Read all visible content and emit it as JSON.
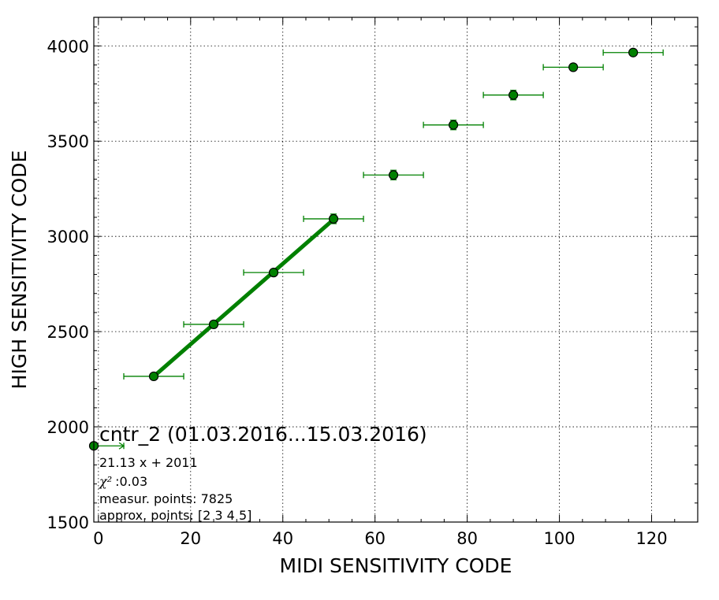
{
  "chart_data": {
    "type": "scatter",
    "title": "",
    "xlabel": "MIDI SENSITIVITY CODE",
    "ylabel": "HIGH SENSITIVITY CODE",
    "xlim": [
      -1,
      130
    ],
    "ylim": [
      1500,
      4150
    ],
    "x_ticks": [
      0,
      20,
      40,
      60,
      80,
      100,
      120
    ],
    "x_tick_labels": [
      "0",
      "20",
      "40",
      "60",
      "80",
      "100",
      "120"
    ],
    "y_ticks": [
      1500,
      2000,
      2500,
      3000,
      3500,
      4000
    ],
    "y_tick_labels": [
      "1500",
      "2000",
      "2500",
      "3000",
      "3500",
      "4000"
    ],
    "grid": true,
    "series": [
      {
        "color": "#008000",
        "points": [
          {
            "x": 12,
            "y": 2265,
            "xerr": 6.5,
            "yerr": 12
          },
          {
            "x": 25,
            "y": 2538,
            "xerr": 6.5,
            "yerr": 15
          },
          {
            "x": 38,
            "y": 2810,
            "xerr": 6.5,
            "yerr": 15
          },
          {
            "x": 51,
            "y": 3092,
            "xerr": 6.5,
            "yerr": 25
          },
          {
            "x": 64,
            "y": 3322,
            "xerr": 6.5,
            "yerr": 25
          },
          {
            "x": 77,
            "y": 3585,
            "xerr": 6.5,
            "yerr": 25
          },
          {
            "x": 90,
            "y": 3742,
            "xerr": 6.5,
            "yerr": 25
          },
          {
            "x": 103,
            "y": 3888,
            "xerr": 6.5,
            "yerr": 12
          },
          {
            "x": 116,
            "y": 3965,
            "xerr": 6.5,
            "yerr": 15
          }
        ]
      }
    ],
    "fit_line": {
      "color": "#008000",
      "slope": 21.13,
      "intercept": 2011,
      "x_range": [
        12,
        51
      ]
    },
    "legend_marker": {
      "x": -1,
      "y": 1900,
      "xerr_right": 6.5,
      "color": "#008000"
    },
    "annotation": {
      "title": "cntr_2 (01.03.2016...15.03.2016)",
      "equation": "21.13 x + 2011",
      "chi2_symbol": "χ²",
      "chi2_value": ":0.03",
      "measur_points": "measur. points: 7825",
      "approx_points": "approx. points: [2 3 4 5]"
    }
  }
}
